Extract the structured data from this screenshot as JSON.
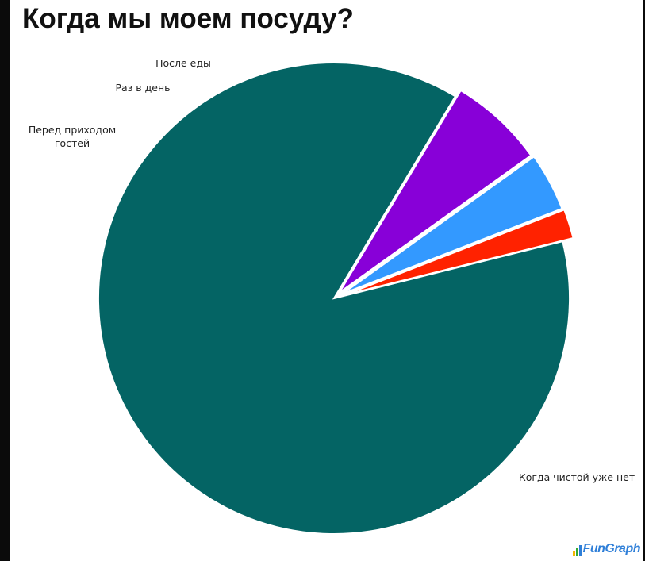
{
  "chart_data": {
    "type": "pie",
    "title": "Когда мы моем посуду?",
    "slices": [
      {
        "label": "Когда чистой уже нет",
        "value": 87.5,
        "color": "#046464"
      },
      {
        "label": "Перед приходом гостей",
        "label_lines": [
          "Перед приходом",
          "гостей"
        ],
        "value": 6.5,
        "color": "#8800d8"
      },
      {
        "label": "Раз в день",
        "label_lines": [
          "Раз в день"
        ],
        "value": 4.0,
        "color": "#3399ff"
      },
      {
        "label": "После еды",
        "label_lines": [
          "После еды"
        ],
        "value": 2.0,
        "color": "#ff2200"
      }
    ],
    "exploded": true
  },
  "watermark": "FunGraph"
}
